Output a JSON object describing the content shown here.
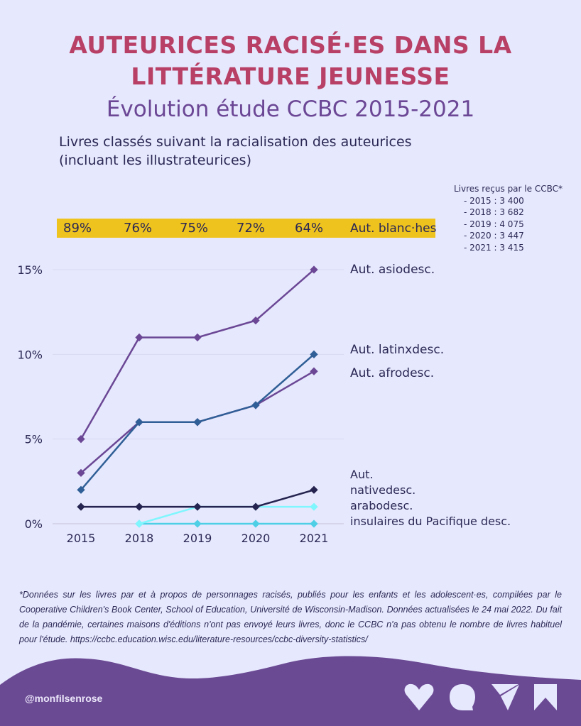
{
  "header": {
    "title_line1": "AUTEURICES RACISÉ·ES DANS LA",
    "title_line2": "LITTÉRATURE JEUNESSE",
    "subtitle": "Évolution étude CCBC 2015-2021",
    "description_line1": "Livres classés suivant la racialisation des auteurices",
    "description_line2": "(incluant les illustrateurices)"
  },
  "books_received": {
    "title": "Livres reçus par le CCBC*",
    "rows": [
      "- 2015 : 3 400",
      "- 2018 : 3 682",
      "- 2019 : 4 075",
      "- 2020 : 3 447",
      "- 2021 : 3 415"
    ]
  },
  "white_authors": {
    "label": "Aut. blanc·hes",
    "values": [
      "89%",
      "76%",
      "75%",
      "72%",
      "64%"
    ],
    "color": "#efc31d"
  },
  "chart_data": {
    "type": "line",
    "title": "Livres classés suivant la racialisation des auteurices",
    "xlabel": "",
    "ylabel": "",
    "categories": [
      "2015",
      "2018",
      "2019",
      "2020",
      "2021"
    ],
    "ylim": [
      0,
      15
    ],
    "yticks": [
      0,
      5,
      10,
      15
    ],
    "ytick_labels": [
      "0%",
      "5%",
      "10%",
      "15%"
    ],
    "grid": true,
    "legend": "right (inline labels)",
    "series": [
      {
        "name": "Aut. asiodesc.",
        "values": [
          5,
          11,
          11,
          12,
          15
        ],
        "color": "#6b4795"
      },
      {
        "name": "Aut. latinxdesc.",
        "values": [
          2,
          6,
          6,
          7,
          10
        ],
        "color": "#2f5f96"
      },
      {
        "name": "Aut. afrodesc.",
        "values": [
          3,
          6,
          6,
          7,
          9
        ],
        "color": "#6b4795"
      },
      {
        "name": "Aut. nativedesc.",
        "values": [
          1,
          1,
          1,
          1,
          2
        ],
        "color": "#25234f"
      },
      {
        "name": "arabodesc.",
        "values": [
          null,
          0,
          1,
          1,
          1
        ],
        "color": "#7ff6fd"
      },
      {
        "name": "insulaires du Pacifique desc.",
        "values": [
          null,
          0,
          0,
          0,
          0
        ],
        "color": "#4ecfe6"
      }
    ],
    "series_labels": [
      "Aut. asiodesc.",
      "Aut. latinxdesc.",
      "Aut. afrodesc.",
      "Aut.",
      "nativedesc.",
      "arabodesc.",
      "insulaires du Pacifique desc."
    ]
  },
  "footnote": "*Données sur les livres par et à propos de personnages racisés, publiés pour les enfants et les adolescent·es, compilées par le Cooperative Children's Book Center, School of Education, Université de Wisconsin-Madison. Données actualisées le 24 mai 2022. Du fait de la pandémie, certaines maisons d'éditions n'ont pas envoyé leurs livres, donc le CCBC n'a pas obtenu le nombre de livres habituel pour l'étude. https://ccbc.education.wisc.edu/literature-resources/ccbc-diversity-statistics/",
  "footer": {
    "handle": "@monfilsenrose",
    "icons": [
      "heart-icon",
      "comment-icon",
      "send-icon",
      "bookmark-icon"
    ],
    "color": "#6b4a94"
  }
}
